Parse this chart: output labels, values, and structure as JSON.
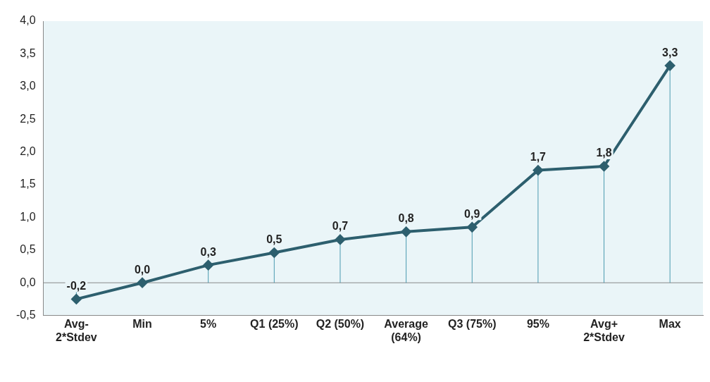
{
  "chart_data": {
    "type": "line",
    "categories": [
      "Avg-\n2*Stdev",
      "Min",
      "5%",
      "Q1 (25%)",
      "Q2 (50%)",
      "Average\n(64%)",
      "Q3 (75%)",
      "95%",
      "Avg+\n2*Stdev",
      "Max"
    ],
    "series": [
      {
        "color": "#2d5f6e",
        "values": [
          -0.25,
          0.0,
          0.27,
          0.46,
          0.66,
          0.78,
          0.85,
          1.72,
          1.78,
          3.32
        ],
        "value_labels": [
          "-0,2",
          "0,0",
          "0,3",
          "0,5",
          "0,7",
          "0,8",
          "0,9",
          "1,7",
          "1,8",
          "3,3"
        ]
      }
    ],
    "ylim": [
      -0.5,
      4.0
    ],
    "yticks": [
      {
        "value": -0.5,
        "label": "-0,5"
      },
      {
        "value": 0,
        "label": "0,0"
      },
      {
        "value": 0.5,
        "label": "0,5"
      },
      {
        "value": 1,
        "label": "1,0"
      },
      {
        "value": 1.5,
        "label": "1,5"
      },
      {
        "value": 2,
        "label": "2,0"
      },
      {
        "value": 2.5,
        "label": "2,5"
      },
      {
        "value": 3,
        "label": "3,0"
      },
      {
        "value": 3.5,
        "label": "3,5"
      },
      {
        "value": 4,
        "label": "4,0"
      }
    ],
    "grid": false,
    "legend": false,
    "marker": "diamond",
    "line_style": "solid"
  }
}
